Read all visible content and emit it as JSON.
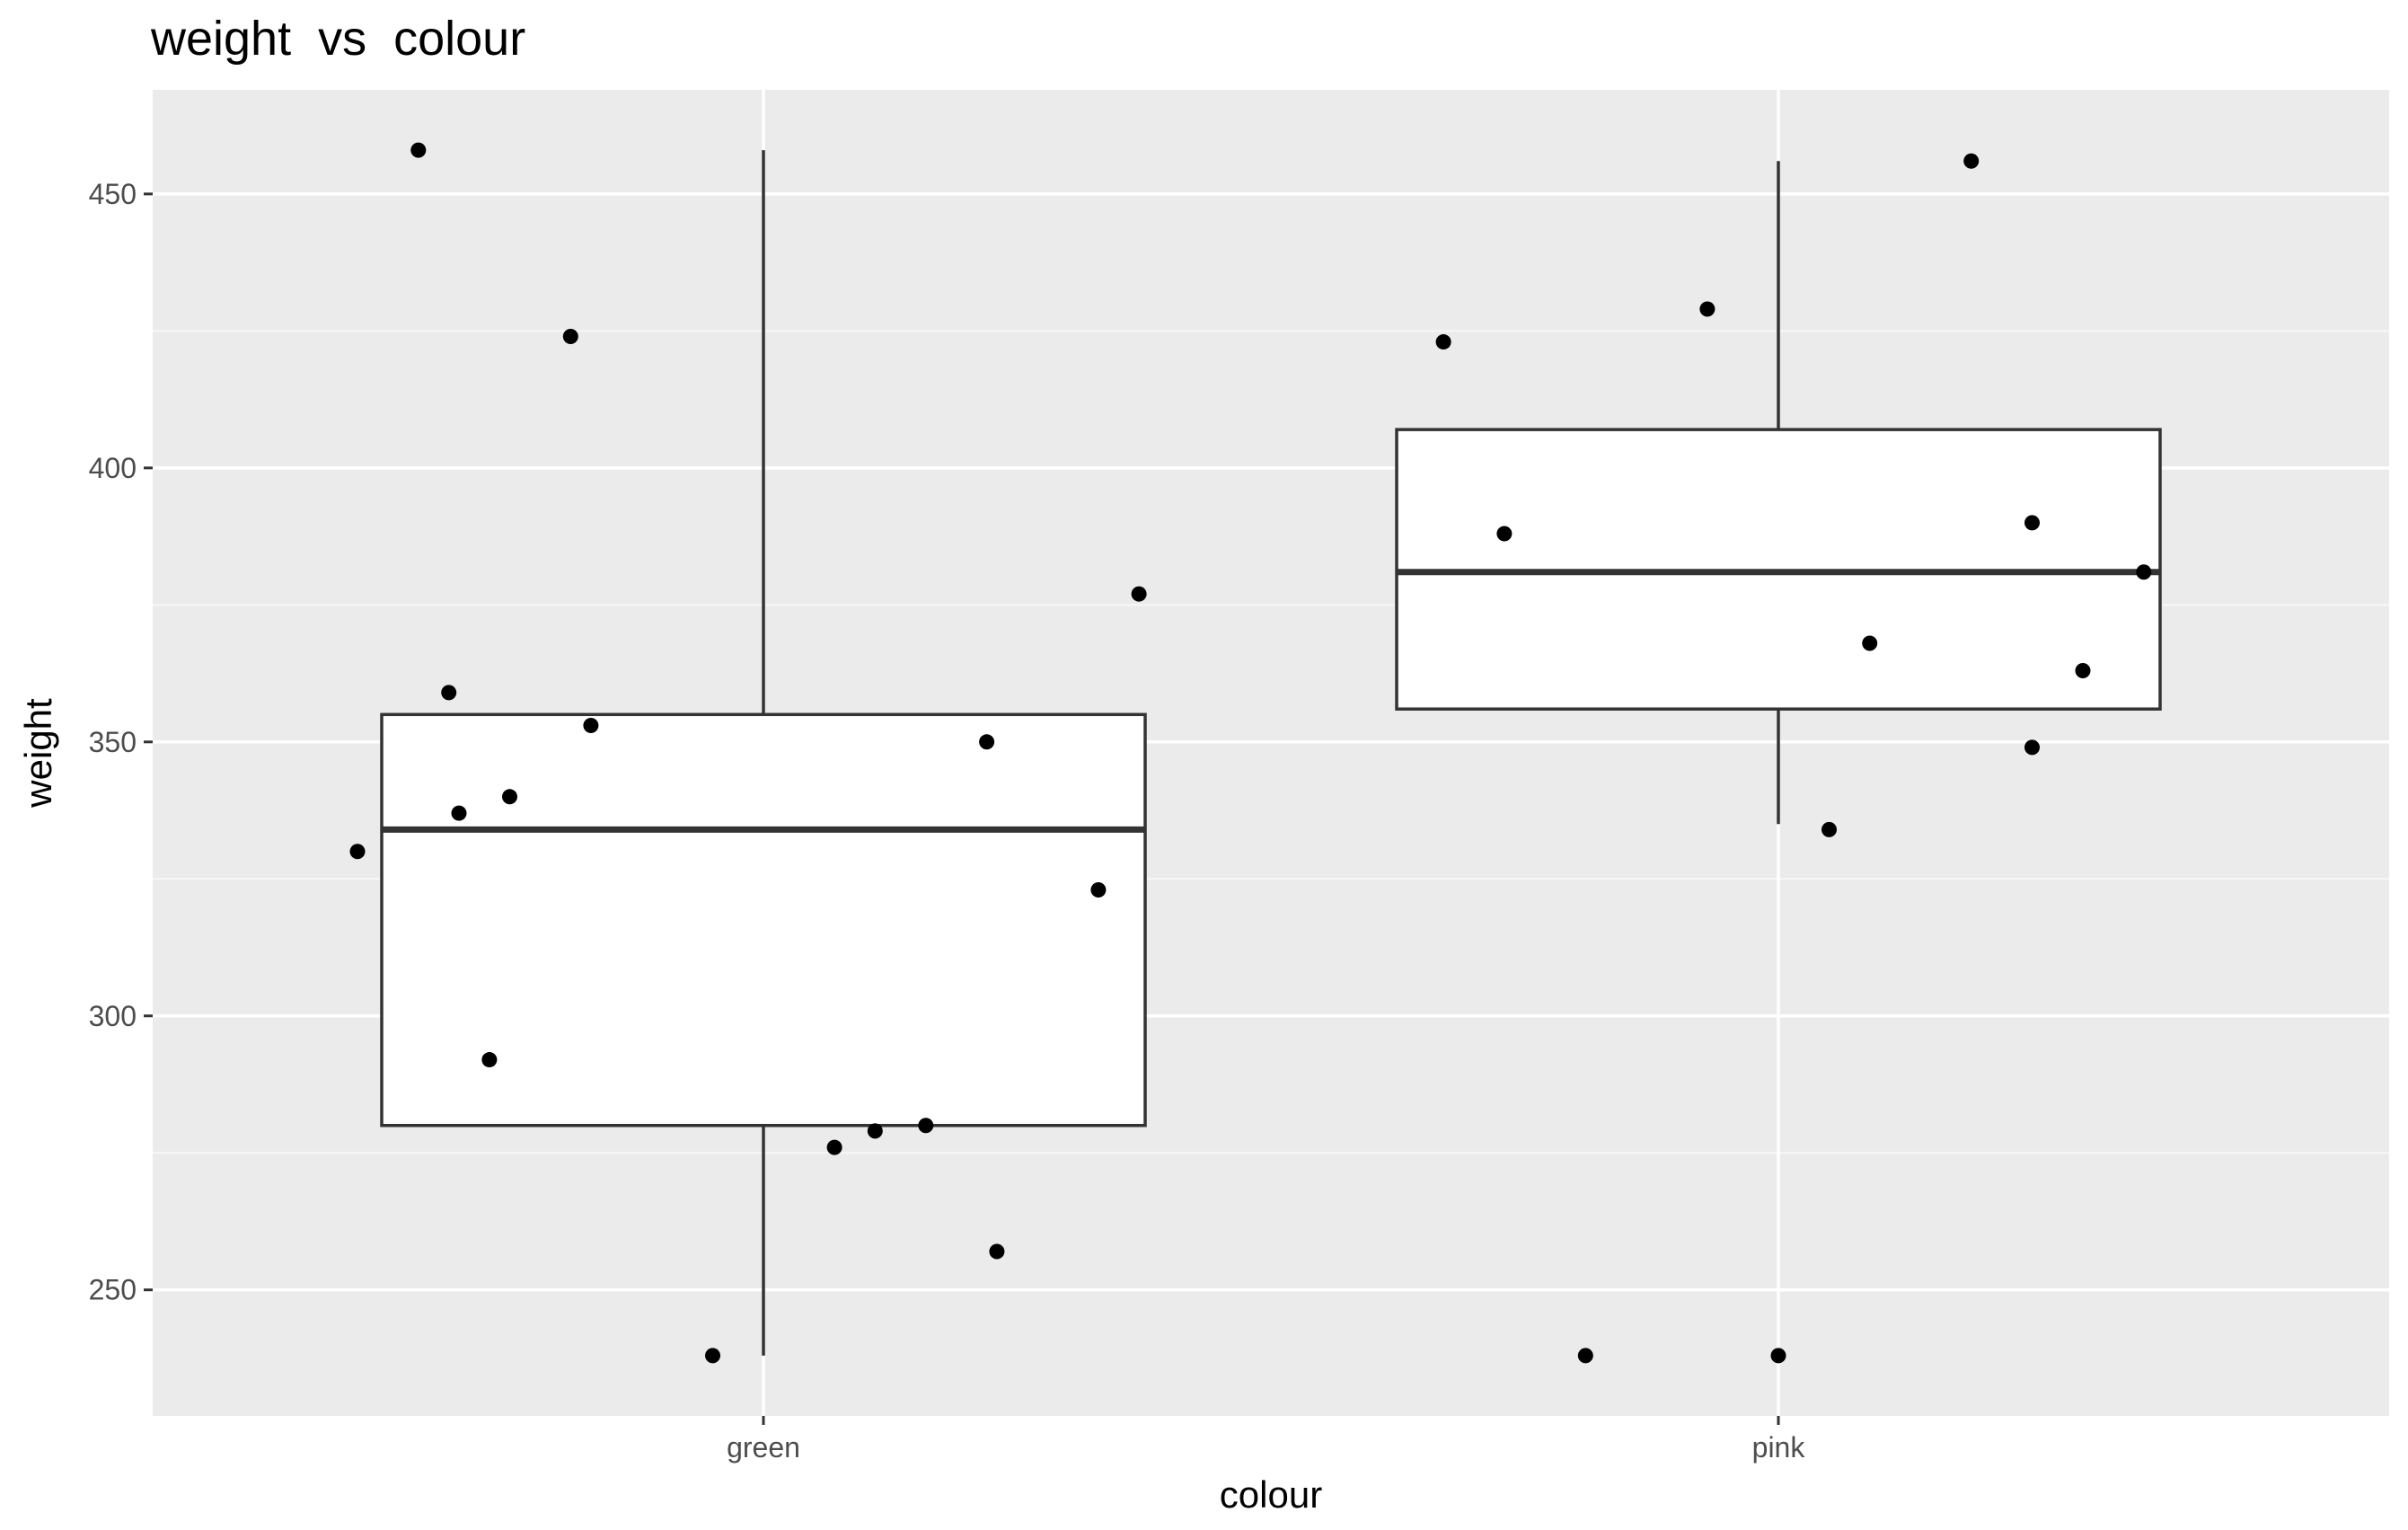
{
  "chart_data": {
    "type": "box",
    "title": "weight  vs  colour",
    "xlabel": "colour",
    "ylabel": "weight",
    "categories": [
      "green",
      "pink"
    ],
    "ylim": [
      227,
      469
    ],
    "yticks": [
      250,
      300,
      350,
      400,
      450
    ],
    "grid": true,
    "legend": "none",
    "colors": {
      "panel": "#ebebeb",
      "grid_major": "#ffffff",
      "grid_minor": "#f7f7f7",
      "box_fill": "#ffffff",
      "box_line": "#333333",
      "point": "#000000",
      "tick_text": "#4d4d4d"
    },
    "boxes": [
      {
        "category": "green",
        "whisker_low": 238,
        "q1": 280,
        "median": 334,
        "q3": 355,
        "whisker_high": 458
      },
      {
        "category": "pink",
        "whisker_low": 335,
        "q1": 356,
        "median": 381,
        "q3": 407,
        "whisker_high": 456
      }
    ],
    "points": [
      {
        "category": "green",
        "jitter": -0.4,
        "y": 330
      },
      {
        "category": "green",
        "jitter": -0.34,
        "y": 458
      },
      {
        "category": "green",
        "jitter": -0.31,
        "y": 359
      },
      {
        "category": "green",
        "jitter": -0.3,
        "y": 337
      },
      {
        "category": "green",
        "jitter": -0.27,
        "y": 292
      },
      {
        "category": "green",
        "jitter": -0.25,
        "y": 340
      },
      {
        "category": "green",
        "jitter": -0.19,
        "y": 424
      },
      {
        "category": "green",
        "jitter": -0.17,
        "y": 353
      },
      {
        "category": "green",
        "jitter": -0.05,
        "y": 238
      },
      {
        "category": "green",
        "jitter": 0.07,
        "y": 276
      },
      {
        "category": "green",
        "jitter": 0.11,
        "y": 279
      },
      {
        "category": "green",
        "jitter": 0.16,
        "y": 280
      },
      {
        "category": "green",
        "jitter": 0.22,
        "y": 350
      },
      {
        "category": "green",
        "jitter": 0.23,
        "y": 257
      },
      {
        "category": "green",
        "jitter": 0.33,
        "y": 323
      },
      {
        "category": "green",
        "jitter": 0.37,
        "y": 377
      },
      {
        "category": "pink",
        "jitter": -0.33,
        "y": 423
      },
      {
        "category": "pink",
        "jitter": -0.27,
        "y": 388
      },
      {
        "category": "pink",
        "jitter": -0.19,
        "y": 238
      },
      {
        "category": "pink",
        "jitter": -0.07,
        "y": 429
      },
      {
        "category": "pink",
        "jitter": 0.0,
        "y": 238
      },
      {
        "category": "pink",
        "jitter": 0.05,
        "y": 334
      },
      {
        "category": "pink",
        "jitter": 0.09,
        "y": 368
      },
      {
        "category": "pink",
        "jitter": 0.19,
        "y": 456
      },
      {
        "category": "pink",
        "jitter": 0.25,
        "y": 390
      },
      {
        "category": "pink",
        "jitter": 0.25,
        "y": 349
      },
      {
        "category": "pink",
        "jitter": 0.3,
        "y": 363
      },
      {
        "category": "pink",
        "jitter": 0.36,
        "y": 381
      }
    ]
  }
}
